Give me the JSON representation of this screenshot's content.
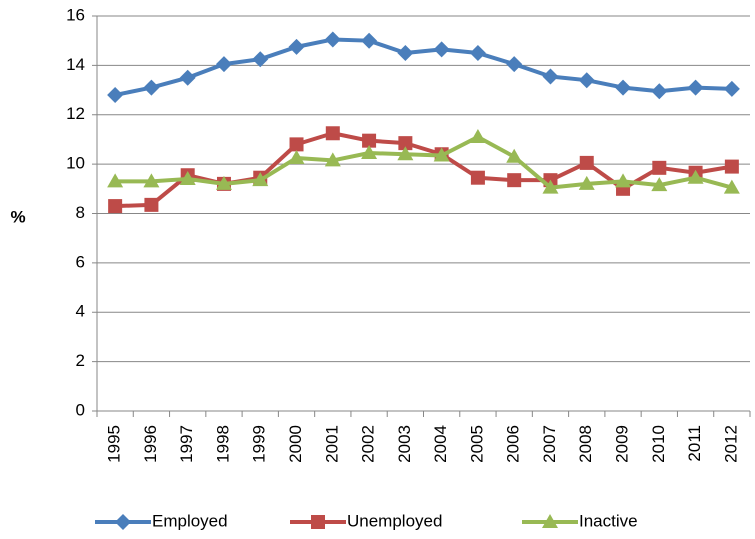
{
  "chart_data": {
    "type": "line",
    "y_label": "%",
    "categories": [
      "1995",
      "1996",
      "1997",
      "1998",
      "1999",
      "2000",
      "2001",
      "2002",
      "2003",
      "2004",
      "2005",
      "2006",
      "2007",
      "2008",
      "2009",
      "2010",
      "2011",
      "2012"
    ],
    "series": [
      {
        "name": "Employed",
        "color": "#4a7ebb",
        "marker": "diamond",
        "values": [
          12.8,
          13.1,
          13.5,
          14.05,
          14.25,
          14.75,
          15.05,
          15.0,
          14.5,
          14.65,
          14.5,
          14.05,
          13.55,
          13.4,
          13.1,
          12.95,
          13.1,
          13.05
        ]
      },
      {
        "name": "Unemployed",
        "color": "#be4b48",
        "marker": "square",
        "values": [
          8.3,
          8.35,
          9.55,
          9.2,
          9.45,
          10.8,
          11.25,
          10.95,
          10.85,
          10.4,
          9.45,
          9.35,
          9.35,
          10.05,
          9.0,
          9.85,
          9.65,
          9.9
        ]
      },
      {
        "name": "Inactive",
        "color": "#98b954",
        "marker": "triangle",
        "values": [
          9.3,
          9.3,
          9.4,
          9.2,
          9.35,
          10.25,
          10.15,
          10.45,
          10.4,
          10.35,
          11.1,
          10.3,
          9.05,
          9.2,
          9.3,
          9.15,
          9.45,
          9.05
        ]
      }
    ],
    "ylim": [
      0,
      16
    ],
    "yticks": [
      0,
      2,
      4,
      6,
      8,
      10,
      12,
      14,
      16
    ],
    "grid": true,
    "legend": "bottom"
  }
}
